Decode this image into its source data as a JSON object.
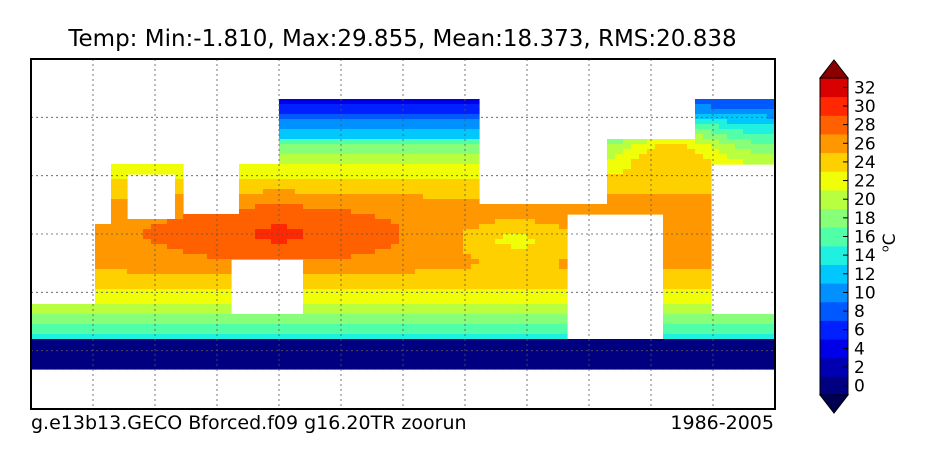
{
  "chart_data": {
    "type": "heatmap",
    "title": "Temp: Min:-1.810, Max:29.855, Mean:18.373, RMS:20.838",
    "subtitle_left": "g.e13b13.GECO Bforced.f09 g16.20TR zoorun",
    "subtitle_right": "1986-2005",
    "colorbar": {
      "label_base": "C",
      "label_super": "o",
      "min": -1,
      "max": 33,
      "ticks": [
        0,
        2,
        4,
        6,
        8,
        10,
        12,
        14,
        16,
        18,
        20,
        22,
        24,
        26,
        28,
        30,
        32
      ],
      "extend": "both"
    },
    "grid": true,
    "projection": "global lon-lat",
    "statistics": {
      "min": -1.81,
      "max": 29.855,
      "mean": 18.373,
      "rms": 20.838
    }
  }
}
